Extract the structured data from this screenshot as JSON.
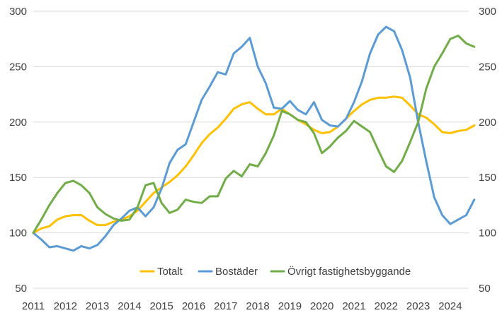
{
  "chart_data": {
    "type": "line",
    "title": "",
    "xlabel": "",
    "ylabel": "",
    "x_ticks": [
      "2011",
      "2012",
      "2013",
      "2014",
      "2015",
      "2016",
      "2017",
      "2018",
      "2019",
      "2020",
      "2021",
      "2022",
      "2023",
      "2024"
    ],
    "y_ticks": [
      "50",
      "100",
      "150",
      "200",
      "250",
      "300"
    ],
    "y_ticks_right": [
      "50",
      "100",
      "150",
      "200",
      "250",
      "300"
    ],
    "ylim": [
      50,
      300
    ],
    "xlim": [
      2011,
      2024.6
    ],
    "grid": true,
    "legend_position": "bottom-inside",
    "series": [
      {
        "name": "Totalt",
        "color": "#FFC000",
        "points": [
          [
            2011.0,
            100
          ],
          [
            2011.25,
            104
          ],
          [
            2011.5,
            106
          ],
          [
            2011.75,
            112
          ],
          [
            2012.0,
            115
          ],
          [
            2012.25,
            116
          ],
          [
            2012.5,
            116
          ],
          [
            2012.75,
            111
          ],
          [
            2013.0,
            107
          ],
          [
            2013.25,
            107
          ],
          [
            2013.5,
            110
          ],
          [
            2013.75,
            112
          ],
          [
            2014.0,
            115
          ],
          [
            2014.25,
            120
          ],
          [
            2014.5,
            128
          ],
          [
            2014.75,
            136
          ],
          [
            2015.0,
            141
          ],
          [
            2015.25,
            146
          ],
          [
            2015.5,
            152
          ],
          [
            2015.75,
            160
          ],
          [
            2016.0,
            170
          ],
          [
            2016.25,
            181
          ],
          [
            2016.5,
            189
          ],
          [
            2016.75,
            195
          ],
          [
            2017.0,
            203
          ],
          [
            2017.25,
            212
          ],
          [
            2017.5,
            216
          ],
          [
            2017.75,
            218
          ],
          [
            2018.0,
            212
          ],
          [
            2018.25,
            207
          ],
          [
            2018.5,
            207
          ],
          [
            2018.75,
            212
          ],
          [
            2019.0,
            207
          ],
          [
            2019.25,
            202
          ],
          [
            2019.5,
            198
          ],
          [
            2019.75,
            193
          ],
          [
            2020.0,
            190
          ],
          [
            2020.25,
            191
          ],
          [
            2020.5,
            196
          ],
          [
            2020.75,
            203
          ],
          [
            2021.0,
            210
          ],
          [
            2021.25,
            216
          ],
          [
            2021.5,
            220
          ],
          [
            2021.75,
            222
          ],
          [
            2022.0,
            222
          ],
          [
            2022.25,
            223
          ],
          [
            2022.5,
            222
          ],
          [
            2022.75,
            215
          ],
          [
            2023.0,
            207
          ],
          [
            2023.25,
            204
          ],
          [
            2023.5,
            198
          ],
          [
            2023.75,
            191
          ],
          [
            2024.0,
            190
          ],
          [
            2024.25,
            192
          ],
          [
            2024.5,
            193
          ],
          [
            2024.75,
            197
          ]
        ]
      },
      {
        "name": "Bostäder",
        "color": "#5B9BD5",
        "points": [
          [
            2011.0,
            100
          ],
          [
            2011.25,
            94
          ],
          [
            2011.5,
            87
          ],
          [
            2011.75,
            88
          ],
          [
            2012.0,
            86
          ],
          [
            2012.25,
            84
          ],
          [
            2012.5,
            88
          ],
          [
            2012.75,
            86
          ],
          [
            2013.0,
            89
          ],
          [
            2013.25,
            97
          ],
          [
            2013.5,
            107
          ],
          [
            2013.75,
            113
          ],
          [
            2014.0,
            120
          ],
          [
            2014.25,
            123
          ],
          [
            2014.5,
            115
          ],
          [
            2014.75,
            123
          ],
          [
            2015.0,
            140
          ],
          [
            2015.25,
            163
          ],
          [
            2015.5,
            175
          ],
          [
            2015.75,
            180
          ],
          [
            2016.0,
            200
          ],
          [
            2016.25,
            220
          ],
          [
            2016.5,
            232
          ],
          [
            2016.75,
            245
          ],
          [
            2017.0,
            243
          ],
          [
            2017.25,
            262
          ],
          [
            2017.5,
            268
          ],
          [
            2017.75,
            276
          ],
          [
            2018.0,
            250
          ],
          [
            2018.25,
            235
          ],
          [
            2018.5,
            213
          ],
          [
            2018.75,
            212
          ],
          [
            2019.0,
            219
          ],
          [
            2019.25,
            211
          ],
          [
            2019.5,
            207
          ],
          [
            2019.75,
            218
          ],
          [
            2020.0,
            202
          ],
          [
            2020.25,
            197
          ],
          [
            2020.5,
            196
          ],
          [
            2020.75,
            203
          ],
          [
            2021.0,
            218
          ],
          [
            2021.25,
            237
          ],
          [
            2021.5,
            262
          ],
          [
            2021.75,
            279
          ],
          [
            2022.0,
            286
          ],
          [
            2022.25,
            282
          ],
          [
            2022.5,
            265
          ],
          [
            2022.75,
            240
          ],
          [
            2023.0,
            200
          ],
          [
            2023.25,
            165
          ],
          [
            2023.5,
            132
          ],
          [
            2023.75,
            116
          ],
          [
            2024.0,
            108
          ],
          [
            2024.25,
            112
          ],
          [
            2024.5,
            116
          ],
          [
            2024.75,
            130
          ]
        ]
      },
      {
        "name": "Övrigt fastighetsbyggande",
        "color": "#70AD47",
        "points": [
          [
            2011.0,
            100
          ],
          [
            2011.25,
            112
          ],
          [
            2011.5,
            125
          ],
          [
            2011.75,
            136
          ],
          [
            2012.0,
            145
          ],
          [
            2012.25,
            147
          ],
          [
            2012.5,
            143
          ],
          [
            2012.75,
            136
          ],
          [
            2013.0,
            123
          ],
          [
            2013.25,
            117
          ],
          [
            2013.5,
            113
          ],
          [
            2013.75,
            111
          ],
          [
            2014.0,
            112
          ],
          [
            2014.25,
            123
          ],
          [
            2014.5,
            143
          ],
          [
            2014.75,
            145
          ],
          [
            2015.0,
            127
          ],
          [
            2015.25,
            118
          ],
          [
            2015.5,
            121
          ],
          [
            2015.75,
            130
          ],
          [
            2016.0,
            128
          ],
          [
            2016.25,
            127
          ],
          [
            2016.5,
            133
          ],
          [
            2016.75,
            133
          ],
          [
            2017.0,
            149
          ],
          [
            2017.25,
            156
          ],
          [
            2017.5,
            151
          ],
          [
            2017.75,
            162
          ],
          [
            2018.0,
            160
          ],
          [
            2018.25,
            172
          ],
          [
            2018.5,
            188
          ],
          [
            2018.75,
            210
          ],
          [
            2019.0,
            207
          ],
          [
            2019.25,
            202
          ],
          [
            2019.5,
            200
          ],
          [
            2019.75,
            190
          ],
          [
            2020.0,
            172
          ],
          [
            2020.25,
            178
          ],
          [
            2020.5,
            186
          ],
          [
            2020.75,
            192
          ],
          [
            2021.0,
            201
          ],
          [
            2021.25,
            196
          ],
          [
            2021.5,
            191
          ],
          [
            2021.75,
            175
          ],
          [
            2022.0,
            160
          ],
          [
            2022.25,
            155
          ],
          [
            2022.5,
            165
          ],
          [
            2022.75,
            182
          ],
          [
            2023.0,
            200
          ],
          [
            2023.25,
            230
          ],
          [
            2023.5,
            250
          ],
          [
            2023.75,
            262
          ],
          [
            2024.0,
            275
          ],
          [
            2024.25,
            278
          ],
          [
            2024.5,
            271
          ],
          [
            2024.75,
            268
          ]
        ]
      }
    ]
  }
}
